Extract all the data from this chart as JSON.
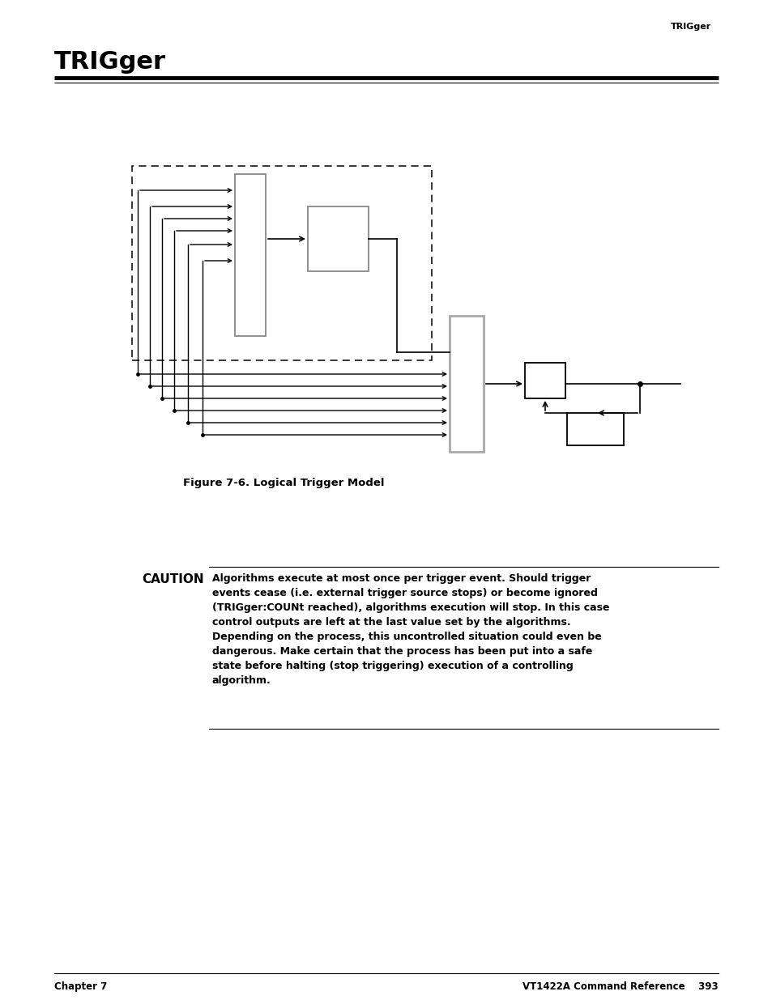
{
  "page_header_right": "TRIGger",
  "title": "TRIGger",
  "figure_caption": "Figure 7-6. Logical Trigger Model",
  "caution_label": "CAUTION",
  "caution_line1": "Algorithms execute at most once per trigger event. Should trigger",
  "caution_line2": "events cease (i.e. external trigger source stops) or become ignored",
  "caution_line3": "(TRIGger:COUNt reached), algorithms execution will stop. In this case",
  "caution_line4": "control outputs are left at the last value set by the algorithms.",
  "caution_line5": "Depending on the process, this uncontrolled situation could even be",
  "caution_line6": "dangerous. Make certain that the process has been put into a safe",
  "caution_line7": "state before halting (stop triggering) execution of a controlling",
  "caution_line8": "algorithm.",
  "footer_left": "Chapter 7",
  "footer_right": "VT1422A Command Reference    393",
  "bg_color": "#ffffff"
}
